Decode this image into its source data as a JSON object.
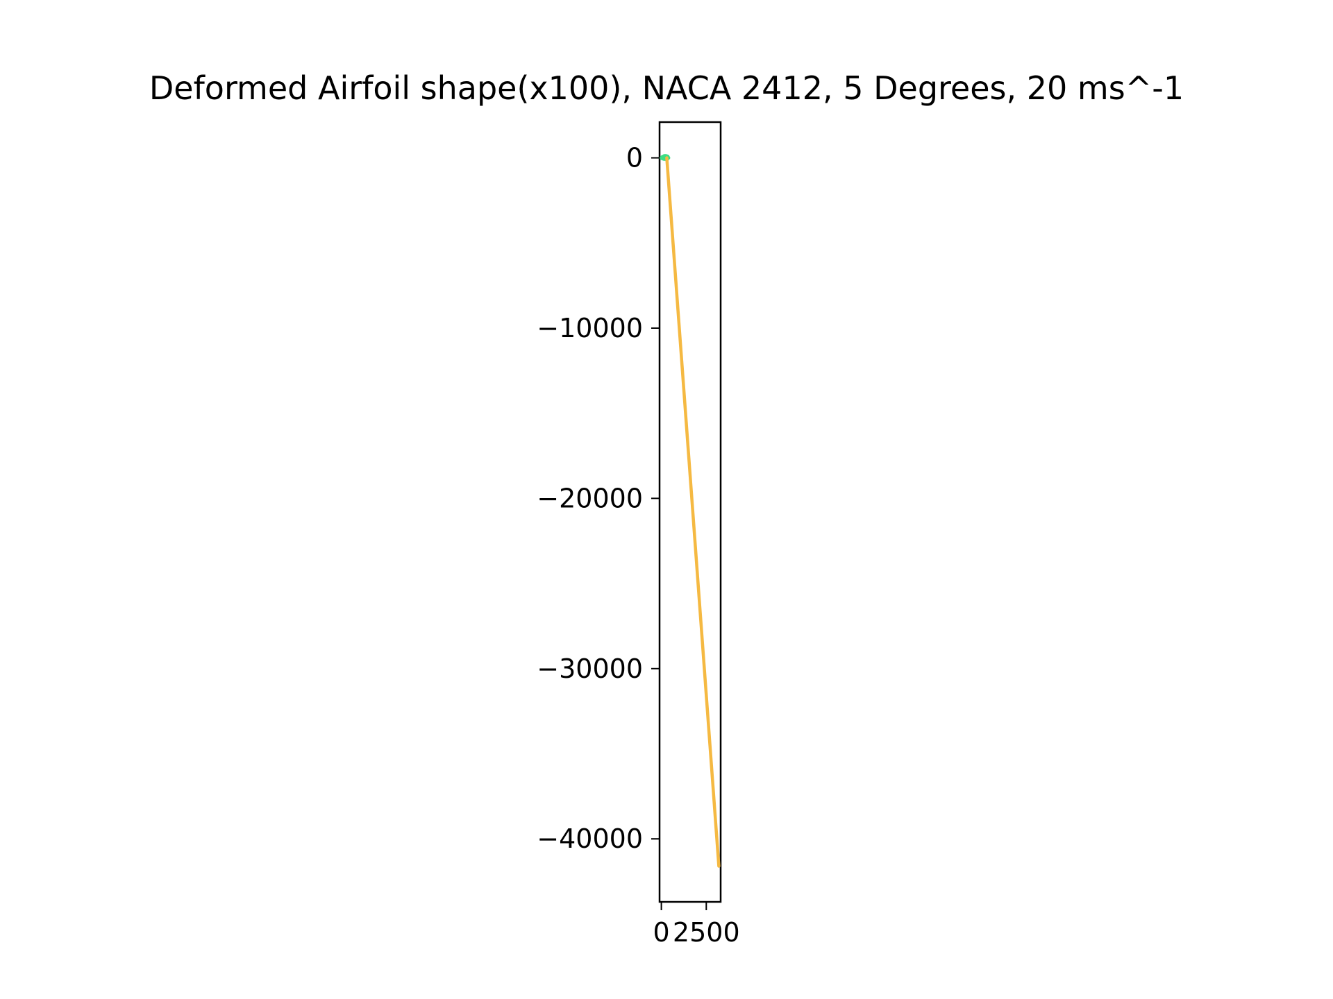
{
  "chart_data": {
    "type": "line",
    "title": "Deformed Airfoil shape(x100), NACA 2412, 5 Degrees, 20 ms^-1",
    "xlabel": "",
    "ylabel": "",
    "xlim": [
      -100,
      3300
    ],
    "ylim": [
      -43700,
      2100
    ],
    "x_ticks": [
      0,
      2500
    ],
    "x_tick_labels": [
      "0",
      "2500"
    ],
    "y_ticks": [
      0,
      -10000,
      -20000,
      -30000,
      -40000
    ],
    "y_tick_labels": [
      "0",
      "−10000",
      "−20000",
      "−30000",
      "−40000"
    ],
    "grid": false,
    "legend": "none",
    "series": [
      {
        "color": "#3ddc84",
        "x": [
          0,
          50,
          150,
          250,
          350,
          400,
          350,
          250,
          150,
          50,
          0
        ],
        "y": [
          0,
          60,
          110,
          120,
          90,
          0,
          -60,
          -80,
          -70,
          -40,
          0
        ]
      },
      {
        "color": "#f5b942",
        "x": [
          300,
          3200
        ],
        "y": [
          0,
          -41600
        ]
      }
    ]
  }
}
